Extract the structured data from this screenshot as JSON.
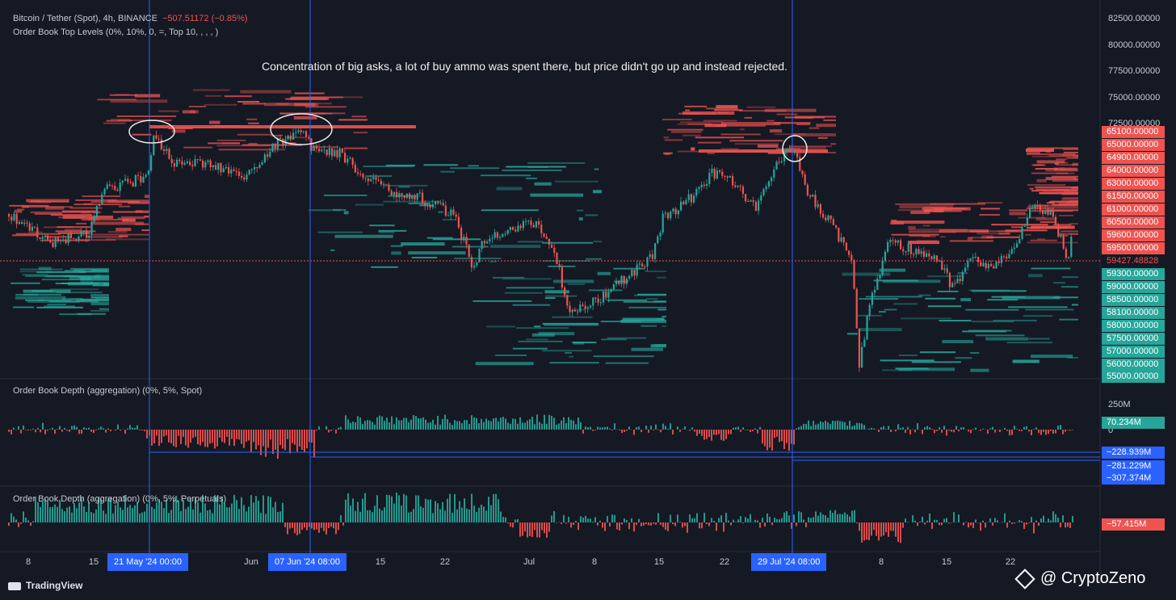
{
  "header": {
    "symbol_line": "Bitcoin / Tether (Spot), 4h, BINANCE",
    "change": "−507.51172 (−0.85%)",
    "indicator1": "Order Book Top Levels (0%, 10%, 0, =, Top 10, , , , )",
    "indicator2": "Order Book Depth (aggregation) (0%, 5%, Spot)",
    "indicator3": "Order Book Depth (aggregation) (0%, 5%, Perpetuals)"
  },
  "annotation": "Concentration of big asks, a lot of buy ammo was spent there, but price didn't go up and instead rejected.",
  "price_axis": {
    "labels": [
      "82500.00000",
      "80000.00000",
      "77500.00000",
      "75000.00000",
      "72500.00000",
      "65100.00000",
      "65000.00000",
      "64900.00000",
      "64000.00000",
      "63000.00000",
      "61500.00000",
      "61000.00000",
      "60500.00000",
      "59600.00000",
      "59500.00000",
      "59427.48828",
      "59300.00000",
      "59000.00000",
      "58500.00000",
      "58100.00000",
      "58000.00000",
      "57500.00000",
      "57000.00000",
      "56000.00000",
      "55000.00000"
    ],
    "colors": {
      "ask": "#ef5350",
      "bid": "#26a69a",
      "current": "#ef5350"
    }
  },
  "depth_axis": {
    "spot_top": "250M",
    "spot_zero": "0",
    "spot_current": "70.234M",
    "spot_lows": [
      "−228.939M",
      "−281.229M",
      "−307.374M"
    ],
    "perp_current": "−57.415M"
  },
  "time_axis": {
    "labels": [
      "8",
      "15",
      "Jun",
      "15",
      "22",
      "Jul",
      "8",
      "15",
      "22",
      "8",
      "15",
      "22"
    ],
    "highlighted": [
      "21 May '24  00:00",
      "07 Jun '24  08:00",
      "29 Jul '24  08:00"
    ]
  },
  "footer": {
    "brand": "TradingView",
    "watermark": "@ CryptoZeno"
  },
  "colors": {
    "background": "#151924",
    "up": "#26a69a",
    "down": "#ef5350",
    "crosshair": "#2962ff"
  }
}
